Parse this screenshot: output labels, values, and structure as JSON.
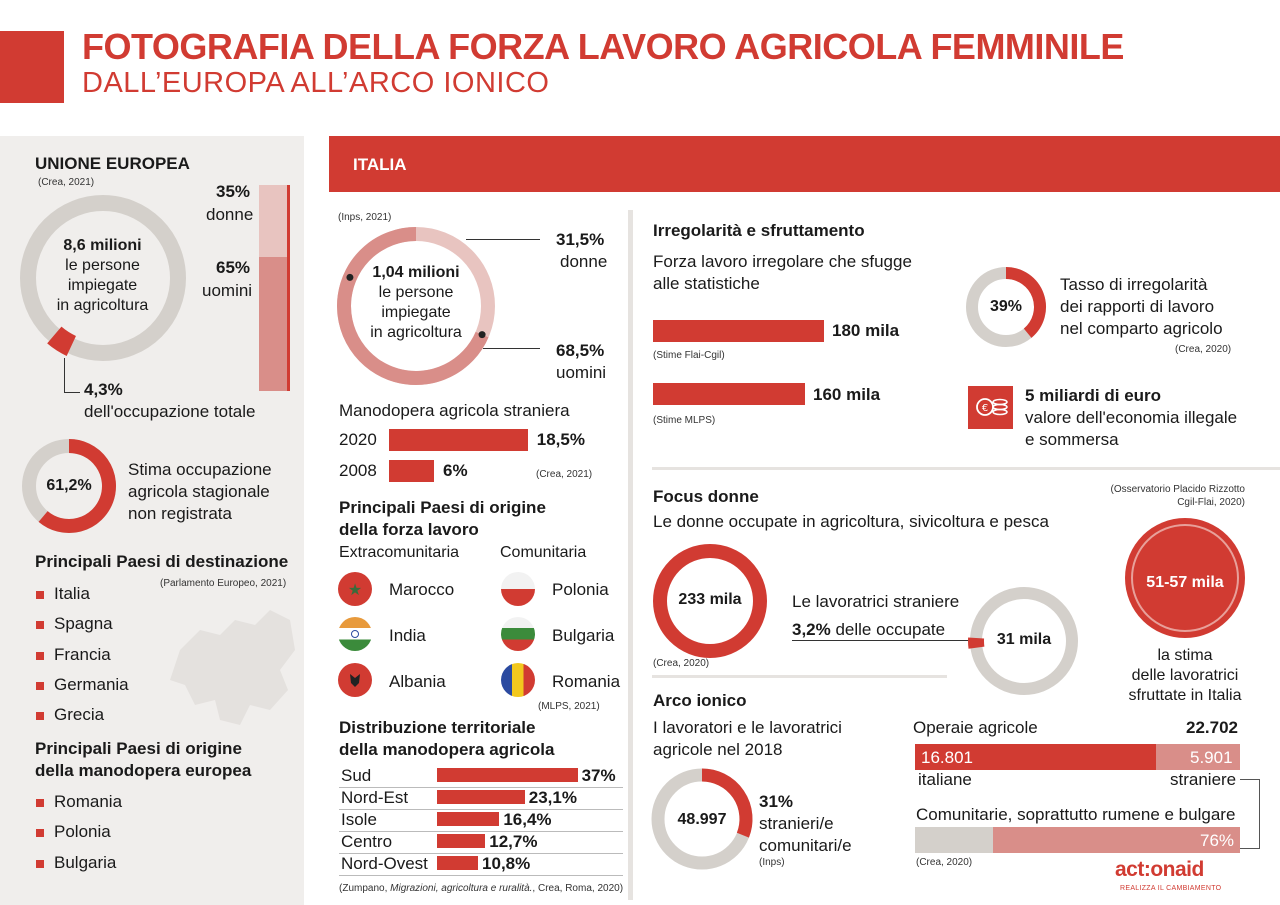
{
  "header": {
    "title": "FOTOGRAFIA DELLA FORZA LAVORO AGRICOLA FEMMINILE",
    "subtitle": "DALL’EUROPA ALL’ARCO IONICO"
  },
  "eu": {
    "heading": "UNIONE EUROPEA",
    "source": "(Crea, 2021)",
    "total_l1": "8,6 milioni",
    "total_l2": "le persone",
    "total_l3": "impiegate",
    "total_l4": "in agricoltura",
    "donne_pct": "35%",
    "donne": "donne",
    "uomini_pct": "65%",
    "uomini": "uomini",
    "share_pct": "4,3%",
    "share_label": "dell'occupazione totale",
    "seasonal_pct": "61,2%",
    "seasonal_l1": "Stima occupazione",
    "seasonal_l2": "agricola stagionale",
    "seasonal_l3": "non registrata",
    "dest_heading": "Principali Paesi di destinazione",
    "dest_source": "(Parlamento Europeo, 2021)",
    "dest": [
      "Italia",
      "Spagna",
      "Francia",
      "Germania",
      "Grecia"
    ],
    "orig_heading_l1": "Principali Paesi di origine",
    "orig_heading_l2": "della manodopera europea",
    "orig": [
      "Romania",
      "Polonia",
      "Bulgaria"
    ]
  },
  "italia": {
    "banner": "ITALIA",
    "source": "(Inps, 2021)",
    "total_l1": "1,04 milioni",
    "total_l2": "le persone",
    "total_l3": "impiegate",
    "total_l4": "in agricoltura",
    "donne_pct": "31,5%",
    "donne": "donne",
    "uomini_pct": "68,5%",
    "uomini": "uomini",
    "foreign_heading": "Manodopera agricola straniera",
    "foreign_2020_year": "2020",
    "foreign_2020": "18,5%",
    "foreign_2008_year": "2008",
    "foreign_2008": "6%",
    "foreign_source": "(Crea, 2021)",
    "origin_heading_l1": "Principali Paesi di origine",
    "origin_heading_l2": "della forza lavoro",
    "extra_label": "Extracomunitaria",
    "comm_label": "Comunitaria",
    "extra": [
      "Marocco",
      "India",
      "Albania"
    ],
    "comm": [
      "Polonia",
      "Bulgaria",
      "Romania"
    ],
    "origin_source": "(MLPS, 2021)",
    "dist_heading_l1": "Distribuzione territoriale",
    "dist_heading_l2": "della manodopera agricola",
    "dist_source_pre": "(Zumpano, ",
    "dist_source_it": "Migrazioni, agricoltura e ruralità.",
    "dist_source_post": ", Crea, Roma, 2020)"
  },
  "irr": {
    "heading": "Irregolarità e sfruttamento",
    "sub_l1": "Forza lavoro irregolare che sfugge",
    "sub_l2": "alle statistiche",
    "bar1_label": "180 mila",
    "bar1_source": "(Stime Flai-Cgil)",
    "bar2_label": "160 mila",
    "bar2_source": "(Stime MLPS)",
    "rate_pct": "39%",
    "rate_l1": "Tasso di irregolarità",
    "rate_l2": "dei rapporti di lavoro",
    "rate_l3": "nel comparto agricolo",
    "rate_source": "(Crea, 2020)",
    "eco_l1": "5 miliardi di euro",
    "eco_l2": "valore dell'economia illegale",
    "eco_l3": "e sommersa"
  },
  "focus": {
    "heading": "Focus donne",
    "source_l1": "(Osservatorio Placido Rizzotto",
    "source_l2": "Cgil-Flai, 2020)",
    "sub": "Le donne occupate in agricoltura, sivicoltura e pesca",
    "women": "233 mila",
    "women_source": "(Crea, 2020)",
    "foreign_l1": "Le lavoratrici straniere",
    "foreign_pct": "3,2%",
    "foreign_l2": " delle occupate",
    "foreign_value": "31 mila",
    "exploited": "51-57 mila",
    "exploited_l1": "la stima",
    "exploited_l2": "delle lavoratrici",
    "exploited_l3": "sfruttate in Italia"
  },
  "arco": {
    "heading": "Arco ionico",
    "sub_l1": "I lavoratori e le lavoratrici",
    "sub_l2": "agricole nel 2018",
    "total": "48.997",
    "pct": "31%",
    "pct_l1": "stranieri/e",
    "pct_l2": "comunitari/e",
    "source": "(Inps)",
    "operaie_label": "Operaie agricole",
    "operaie_total": "22.702",
    "ital": "16.801",
    "stran": "5.901",
    "ital_label": "italiane",
    "stran_label": "straniere",
    "comm_label": "Comunitarie, soprattutto rumene e bulgare",
    "comm_pct": "76%",
    "comm_source": "(Crea, 2020)"
  },
  "logo": {
    "name": "act:onaid",
    "tagline": "REALIZZA IL CAMBIAMENTO"
  },
  "colors": {
    "accent": "#d13b32",
    "light": "#e8c4c0",
    "mid": "#d98e89",
    "grey": "#d4d0cb",
    "panel": "#f0eeec"
  },
  "chart_data": [
    {
      "type": "pie",
      "title": "UNIONE EUROPEA",
      "categories": [
        "donne",
        "uomini"
      ],
      "values": [
        35,
        65
      ]
    },
    {
      "type": "pie",
      "title": "",
      "categories": [
        "dell'occupazione totale"
      ],
      "values": [
        4.3
      ]
    },
    {
      "type": "pie",
      "title": "",
      "categories": [
        "Stima occupazione agricola stagionale non registrata"
      ],
      "values": [
        61.2
      ]
    },
    {
      "type": "pie",
      "title": "ITALIA",
      "categories": [
        "donne",
        "uomini"
      ],
      "values": [
        31.5,
        68.5
      ]
    },
    {
      "type": "bar",
      "title": "Manodopera agricola straniera",
      "categories": [
        "2020",
        "2008"
      ],
      "values": [
        18.5,
        6
      ]
    },
    {
      "type": "bar",
      "title": "Distribuzione territoriale della manodopera agricola",
      "categories": [
        "Sud",
        "Nord-Est",
        "Isole",
        "Centro",
        "Nord-Ovest"
      ],
      "values": [
        37,
        23.1,
        16.4,
        12.7,
        10.8
      ]
    },
    {
      "type": "bar",
      "title": "Forza lavoro irregolare che sfugge alle statistiche",
      "categories": [
        "Stime Flai-Cgil",
        "Stime MLPS"
      ],
      "values": [
        180,
        160
      ]
    },
    {
      "type": "pie",
      "title": "Tasso di irregolarità",
      "values": [
        39
      ]
    },
    {
      "type": "pie",
      "title": "Le lavoratrici straniere",
      "values": [
        3.2
      ]
    },
    {
      "type": "pie",
      "title": "Arco ionico",
      "values": [
        31
      ]
    },
    {
      "type": "bar",
      "title": "Operaie agricole",
      "categories": [
        "italiane",
        "straniere"
      ],
      "values": [
        16801,
        5901
      ]
    },
    {
      "type": "bar",
      "title": "Comunitarie, soprattutto rumene e bulgare",
      "values": [
        76
      ]
    }
  ],
  "dist_rows": [
    {
      "label": "Sud",
      "value": "37%",
      "v": 37
    },
    {
      "label": "Nord-Est",
      "value": "23,1%",
      "v": 23.1
    },
    {
      "label": "Isole",
      "value": "16,4%",
      "v": 16.4
    },
    {
      "label": "Centro",
      "value": "12,7%",
      "v": 12.7
    },
    {
      "label": "Nord-Ovest",
      "value": "10,8%",
      "v": 10.8
    }
  ]
}
